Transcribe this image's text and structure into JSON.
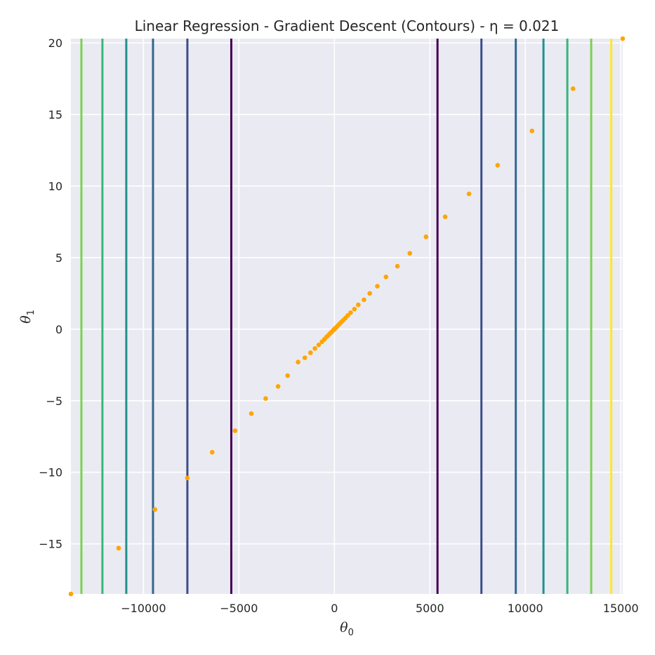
{
  "chart_data": {
    "type": "scatter",
    "title": "Linear Regression - Gradient Descent (Contours) - η = 0.021",
    "xlabel": {
      "symbol": "θ",
      "sub": "0"
    },
    "ylabel": {
      "symbol": "θ",
      "sub": "1"
    },
    "xlim": [
      -13800,
      15100
    ],
    "ylim": [
      -18.5,
      20.3
    ],
    "xticks": [
      -10000,
      -5000,
      0,
      5000,
      10000,
      15000
    ],
    "xtick_labels": [
      "−10000",
      "−5000",
      "0",
      "5000",
      "10000",
      "15000"
    ],
    "yticks": [
      -15,
      -10,
      -5,
      0,
      5,
      10,
      15,
      20
    ],
    "ytick_labels": [
      "−15",
      "−10",
      "−5",
      "0",
      "5",
      "10",
      "15",
      "20"
    ],
    "grid": true,
    "background": "#eaeaf2",
    "point_color": "#ffa500",
    "contour_levels": [
      {
        "xs": [
          -5400,
          5400
        ],
        "color": "#440154"
      },
      {
        "xs": [
          -7700,
          7700
        ],
        "color": "#3b4c8c"
      },
      {
        "xs": [
          -9500,
          9500
        ],
        "color": "#31688e"
      },
      {
        "xs": [
          -10900,
          10950
        ],
        "color": "#21918c"
      },
      {
        "xs": [
          -12150,
          12200
        ],
        "color": "#35b779"
      },
      {
        "xs": [
          -13250,
          13450
        ],
        "color": "#7ad151"
      },
      {
        "xs": [
          14500
        ],
        "color": "#fde725"
      }
    ],
    "series": [
      {
        "x": [
          15100,
          12500,
          10350,
          8550,
          7050,
          5800,
          4800,
          3950,
          3300,
          2700,
          2250,
          1850,
          1550,
          1250,
          1050,
          850,
          700,
          580,
          470,
          370,
          280,
          200,
          130,
          70,
          20,
          -20,
          -60,
          -110,
          -170,
          -240,
          -320,
          -410,
          -520,
          -650,
          -820,
          -1020,
          -1250,
          -1550,
          -1900,
          -2450,
          -2950,
          -3600,
          -4350,
          -5200,
          -6400,
          -7700,
          -9400,
          -11300,
          -13800
        ],
        "y": [
          20.3,
          16.8,
          13.85,
          11.45,
          9.45,
          7.85,
          6.45,
          5.3,
          4.4,
          3.65,
          3.0,
          2.5,
          2.05,
          1.7,
          1.4,
          1.15,
          0.95,
          0.78,
          0.63,
          0.5,
          0.38,
          0.27,
          0.17,
          0.09,
          0.03,
          -0.03,
          -0.08,
          -0.15,
          -0.23,
          -0.32,
          -0.43,
          -0.55,
          -0.7,
          -0.88,
          -1.1,
          -1.35,
          -1.65,
          -2.0,
          -2.3,
          -3.25,
          -4.0,
          -4.85,
          -5.9,
          -7.1,
          -8.6,
          -10.4,
          -12.6,
          -15.3,
          -18.5
        ]
      }
    ]
  }
}
